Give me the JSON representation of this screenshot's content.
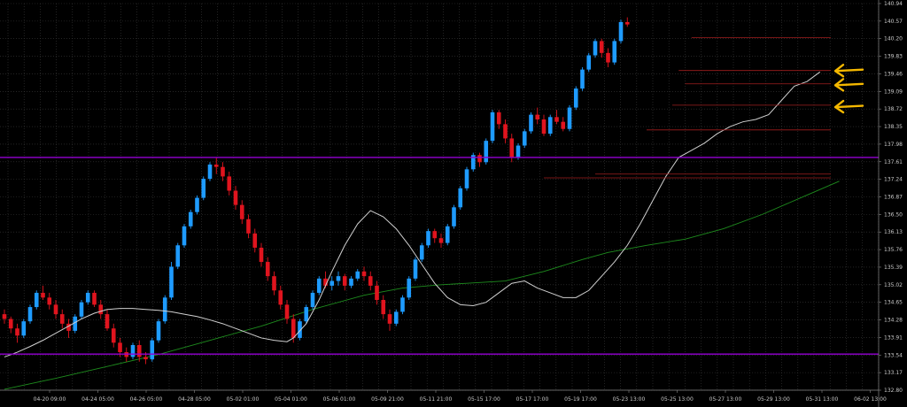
{
  "chart_data": {
    "type": "candlestick",
    "background": "#000000",
    "grid": true,
    "colors": {
      "up": "#1e9bff",
      "down": "#e0141e",
      "grid": "#3a3a3a",
      "fast_ma": "#d0d0d0",
      "slow_ma": "#1e8c1e",
      "support_resistance": "#9400d3",
      "zone_lines": "#a01e1e",
      "arrows": "#f5b800"
    },
    "ylim": [
      132.8,
      140.94
    ],
    "y_ticks": [
      "140.94",
      "140.57",
      "140.20",
      "139.83",
      "139.46",
      "139.09",
      "138.72",
      "138.35",
      "137.98",
      "137.61",
      "137.24",
      "136.87",
      "136.50",
      "136.13",
      "135.76",
      "135.39",
      "135.02",
      "134.65",
      "134.28",
      "133.91",
      "133.54",
      "133.17",
      "132.80"
    ],
    "x_ticks": [
      "04-20 09:00",
      "04-24 05:00",
      "04-26 05:00",
      "04-28 05:00",
      "05-02 01:00",
      "05-04 01:00",
      "05-06 01:00",
      "05-09 21:00",
      "05-11 21:00",
      "05-15 17:00",
      "05-17 17:00",
      "05-19 17:00",
      "05-23 13:00",
      "05-25 13:00",
      "05-27 13:00",
      "05-29 13:00",
      "05-31 13:00",
      "06-02 13:00"
    ],
    "purple_levels": [
      137.7,
      133.56
    ],
    "zone_levels": [
      140.22,
      139.53,
      139.25,
      138.8,
      138.28,
      137.35,
      137.27
    ],
    "arrow_levels": [
      139.52,
      139.22,
      138.76
    ],
    "candles": [
      [
        134.4,
        134.5,
        134.2,
        134.3
      ],
      [
        134.3,
        134.35,
        134.0,
        134.1
      ],
      [
        134.1,
        134.2,
        133.8,
        133.95
      ],
      [
        133.95,
        134.3,
        133.9,
        134.25
      ],
      [
        134.25,
        134.6,
        134.2,
        134.55
      ],
      [
        134.55,
        134.9,
        134.5,
        134.85
      ],
      [
        134.85,
        135.0,
        134.7,
        134.75
      ],
      [
        134.75,
        134.85,
        134.5,
        134.6
      ],
      [
        134.6,
        134.7,
        134.3,
        134.4
      ],
      [
        134.4,
        134.5,
        134.1,
        134.2
      ],
      [
        134.2,
        134.3,
        133.9,
        134.05
      ],
      [
        134.05,
        134.4,
        134.0,
        134.35
      ],
      [
        134.35,
        134.7,
        134.3,
        134.65
      ],
      [
        134.65,
        134.9,
        134.6,
        134.85
      ],
      [
        134.85,
        134.9,
        134.55,
        134.6
      ],
      [
        134.6,
        134.7,
        134.3,
        134.4
      ],
      [
        134.4,
        134.5,
        134.05,
        134.1
      ],
      [
        134.1,
        134.2,
        133.7,
        133.8
      ],
      [
        133.8,
        133.9,
        133.5,
        133.6
      ],
      [
        133.6,
        133.7,
        133.4,
        133.5
      ],
      [
        133.5,
        133.8,
        133.45,
        133.75
      ],
      [
        133.75,
        133.85,
        133.4,
        133.5
      ],
      [
        133.5,
        133.6,
        133.35,
        133.45
      ],
      [
        133.45,
        133.9,
        133.4,
        133.85
      ],
      [
        133.85,
        134.3,
        133.8,
        134.25
      ],
      [
        134.25,
        134.8,
        134.2,
        134.75
      ],
      [
        134.75,
        135.5,
        134.7,
        135.4
      ],
      [
        135.4,
        135.9,
        135.35,
        135.85
      ],
      [
        135.85,
        136.3,
        135.8,
        136.25
      ],
      [
        136.25,
        136.6,
        136.2,
        136.55
      ],
      [
        136.55,
        136.9,
        136.5,
        136.85
      ],
      [
        136.85,
        137.3,
        136.8,
        137.25
      ],
      [
        137.25,
        137.6,
        137.2,
        137.55
      ],
      [
        137.55,
        137.7,
        137.35,
        137.5
      ],
      [
        137.5,
        137.6,
        137.2,
        137.3
      ],
      [
        137.3,
        137.4,
        136.9,
        137.0
      ],
      [
        137.0,
        137.1,
        136.6,
        136.7
      ],
      [
        136.7,
        136.8,
        136.3,
        136.4
      ],
      [
        136.4,
        136.5,
        136.0,
        136.1
      ],
      [
        136.1,
        136.2,
        135.7,
        135.8
      ],
      [
        135.8,
        135.9,
        135.4,
        135.5
      ],
      [
        135.5,
        135.6,
        135.1,
        135.2
      ],
      [
        135.2,
        135.3,
        134.8,
        134.9
      ],
      [
        134.9,
        135.0,
        134.5,
        134.6
      ],
      [
        134.6,
        134.7,
        134.2,
        134.3
      ],
      [
        134.3,
        134.4,
        133.8,
        133.9
      ],
      [
        133.9,
        134.3,
        133.85,
        134.25
      ],
      [
        134.25,
        134.6,
        134.2,
        134.55
      ],
      [
        134.55,
        134.9,
        134.5,
        134.85
      ],
      [
        134.85,
        135.2,
        134.8,
        135.15
      ],
      [
        135.15,
        135.3,
        134.95,
        135.0
      ],
      [
        135.0,
        135.2,
        134.9,
        135.1
      ],
      [
        135.1,
        135.3,
        135.0,
        135.2
      ],
      [
        135.2,
        135.25,
        134.9,
        135.0
      ],
      [
        135.0,
        135.2,
        134.95,
        135.15
      ],
      [
        135.15,
        135.35,
        135.1,
        135.3
      ],
      [
        135.3,
        135.4,
        135.1,
        135.2
      ],
      [
        135.2,
        135.3,
        134.9,
        135.0
      ],
      [
        135.0,
        135.1,
        134.6,
        134.7
      ],
      [
        134.7,
        134.8,
        134.3,
        134.4
      ],
      [
        134.4,
        134.5,
        134.05,
        134.2
      ],
      [
        134.2,
        134.5,
        134.15,
        134.45
      ],
      [
        134.45,
        134.8,
        134.4,
        134.75
      ],
      [
        134.75,
        135.2,
        134.7,
        135.15
      ],
      [
        135.15,
        135.6,
        135.1,
        135.55
      ],
      [
        135.55,
        135.9,
        135.5,
        135.85
      ],
      [
        135.85,
        136.2,
        135.8,
        136.15
      ],
      [
        136.15,
        136.2,
        135.9,
        136.0
      ],
      [
        136.0,
        136.1,
        135.8,
        135.9
      ],
      [
        135.9,
        136.3,
        135.85,
        136.25
      ],
      [
        136.25,
        136.7,
        136.2,
        136.65
      ],
      [
        136.65,
        137.1,
        136.6,
        137.05
      ],
      [
        137.05,
        137.5,
        137.0,
        137.45
      ],
      [
        137.45,
        137.8,
        137.4,
        137.75
      ],
      [
        137.75,
        137.8,
        137.5,
        137.6
      ],
      [
        137.6,
        138.1,
        137.55,
        138.05
      ],
      [
        138.05,
        138.7,
        138.0,
        138.65
      ],
      [
        138.65,
        138.7,
        138.3,
        138.4
      ],
      [
        138.4,
        138.5,
        138.0,
        138.1
      ],
      [
        138.1,
        138.2,
        137.6,
        137.7
      ],
      [
        137.7,
        138.0,
        137.65,
        137.95
      ],
      [
        137.95,
        138.3,
        137.9,
        138.25
      ],
      [
        138.25,
        138.65,
        138.2,
        138.6
      ],
      [
        138.6,
        138.75,
        138.4,
        138.5
      ],
      [
        138.5,
        138.6,
        138.15,
        138.2
      ],
      [
        138.2,
        138.6,
        138.15,
        138.55
      ],
      [
        138.55,
        138.7,
        138.4,
        138.45
      ],
      [
        138.45,
        138.55,
        138.25,
        138.3
      ],
      [
        138.3,
        138.8,
        138.25,
        138.75
      ],
      [
        138.75,
        139.2,
        138.7,
        139.15
      ],
      [
        139.15,
        139.6,
        139.1,
        139.55
      ],
      [
        139.55,
        139.9,
        139.5,
        139.85
      ],
      [
        139.85,
        140.2,
        139.8,
        140.15
      ],
      [
        140.15,
        140.2,
        139.8,
        139.9
      ],
      [
        139.9,
        140.0,
        139.6,
        139.7
      ],
      [
        139.7,
        140.2,
        139.65,
        140.15
      ],
      [
        140.15,
        140.6,
        140.1,
        140.55
      ],
      [
        140.55,
        140.65,
        140.45,
        140.5
      ]
    ],
    "fast_ma": [
      133.5,
      133.6,
      133.72,
      133.85,
      134.0,
      134.15,
      134.3,
      134.42,
      134.5,
      134.52,
      134.52,
      134.5,
      134.48,
      134.45,
      134.4,
      134.35,
      134.28,
      134.2,
      134.1,
      134.0,
      133.9,
      133.85,
      133.82,
      133.9,
      134.2,
      134.7,
      135.3,
      135.85,
      136.3,
      136.58,
      136.45,
      136.2,
      135.85,
      135.45,
      135.05,
      134.75,
      134.6,
      134.58,
      134.65,
      134.85,
      135.05,
      135.1,
      134.95,
      134.85,
      134.75,
      134.75,
      134.9,
      135.2,
      135.5,
      135.85,
      136.3,
      136.8,
      137.3,
      137.7,
      137.85,
      138.0,
      138.2,
      138.35,
      138.45,
      138.5,
      138.6,
      138.9,
      139.2,
      139.3,
      139.5
    ],
    "fast_ma_x": [
      0,
      2,
      4,
      6,
      8,
      10,
      12,
      14,
      16,
      18,
      20,
      22,
      24,
      26,
      28,
      30,
      32,
      34,
      36,
      38,
      40,
      42,
      44,
      45,
      47,
      49,
      51,
      53,
      55,
      57,
      59,
      61,
      63,
      65,
      67,
      69,
      71,
      73,
      75,
      77,
      79,
      81,
      83,
      85,
      87,
      89,
      91,
      93,
      95,
      97,
      99,
      101,
      103,
      105,
      107,
      109,
      111,
      113,
      115,
      117,
      119,
      121,
      123,
      125,
      127
    ],
    "slow_ma": [
      132.82,
      133.05,
      133.3,
      133.55,
      133.85,
      134.15,
      134.5,
      134.8,
      134.95,
      135.02,
      135.05,
      135.1,
      135.3,
      135.55,
      135.7,
      135.85,
      135.98,
      136.2,
      136.5,
      136.85,
      137.2
    ],
    "slow_ma_x": [
      0,
      8,
      16,
      24,
      32,
      40,
      48,
      56,
      62,
      68,
      72,
      78,
      84,
      90,
      94,
      100,
      106,
      112,
      118,
      124,
      130
    ]
  }
}
